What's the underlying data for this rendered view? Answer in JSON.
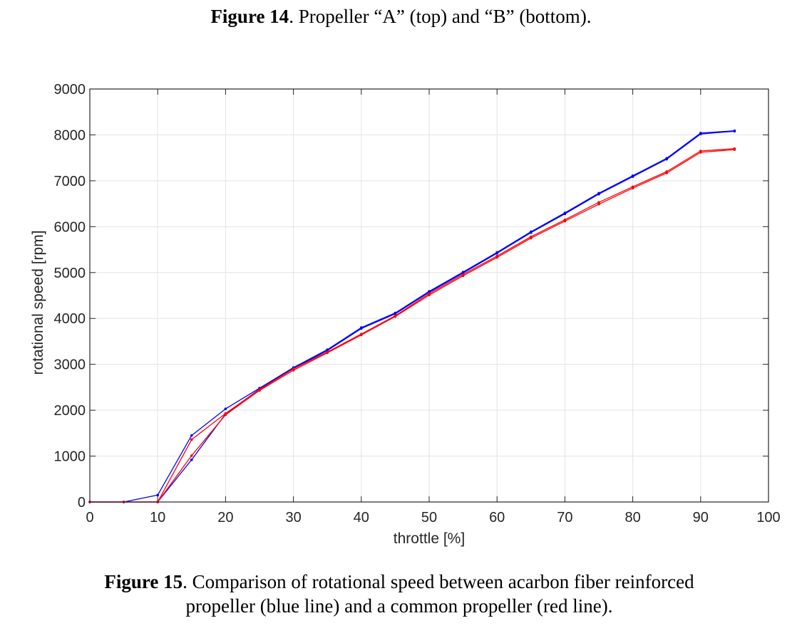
{
  "figure14": {
    "label": "Figure 14",
    "text": ". Propeller “A” (top) and “B” (bottom)."
  },
  "figure15": {
    "label": "Figure 15",
    "text_line1": ". Comparison of rotational speed between acarbon fiber reinforced",
    "text_line2": "propeller (blue line) and a common propeller (red line)."
  },
  "chart_data": {
    "type": "line",
    "xlabel": "throttle [%]",
    "ylabel": "rotational speed [rpm]",
    "xlim": [
      0,
      100
    ],
    "ylim": [
      0,
      9000
    ],
    "xticks": [
      0,
      10,
      20,
      30,
      40,
      50,
      60,
      70,
      80,
      90,
      100
    ],
    "yticks": [
      0,
      1000,
      2000,
      3000,
      4000,
      5000,
      6000,
      7000,
      8000,
      9000
    ],
    "grid": true,
    "legend": "none",
    "series": [
      {
        "color": "#0000ff",
        "x": [
          0,
          5,
          10,
          15,
          20,
          25,
          30,
          35,
          40,
          45,
          50,
          55,
          60,
          65,
          70,
          75,
          80,
          85,
          90,
          95
        ],
        "values": [
          0,
          0,
          150,
          1450,
          2030,
          2480,
          2930,
          3320,
          3800,
          4120,
          4590,
          5010,
          5440,
          5890,
          6300,
          6730,
          7110,
          7490,
          8040,
          8090
        ]
      },
      {
        "color": "#0000ff",
        "x": [
          0,
          5,
          10,
          15,
          20,
          25,
          30,
          35,
          40,
          45,
          50,
          55,
          60,
          65,
          70,
          75,
          80,
          85,
          90,
          95
        ],
        "values": [
          0,
          0,
          0,
          920,
          1920,
          2460,
          2910,
          3300,
          3780,
          4100,
          4570,
          4990,
          5420,
          5870,
          6280,
          6710,
          7090,
          7470,
          8020,
          8080
        ]
      },
      {
        "color": "#ff0000",
        "x": [
          0,
          5,
          10,
          15,
          20,
          25,
          30,
          35,
          40,
          45,
          50,
          55,
          60,
          65,
          70,
          75,
          80,
          85,
          90,
          95
        ],
        "values": [
          0,
          0,
          0,
          1360,
          1930,
          2450,
          2900,
          3270,
          3660,
          4060,
          4540,
          4960,
          5360,
          5780,
          6150,
          6530,
          6870,
          7200,
          7650,
          7700
        ]
      },
      {
        "color": "#ff0000",
        "x": [
          0,
          5,
          10,
          15,
          20,
          25,
          30,
          35,
          40,
          45,
          50,
          55,
          60,
          65,
          70,
          75,
          80,
          85,
          90,
          95
        ],
        "values": [
          0,
          0,
          0,
          1010,
          1900,
          2430,
          2870,
          3250,
          3640,
          4040,
          4510,
          4930,
          5330,
          5750,
          6120,
          6490,
          6840,
          7170,
          7620,
          7680
        ]
      }
    ]
  }
}
